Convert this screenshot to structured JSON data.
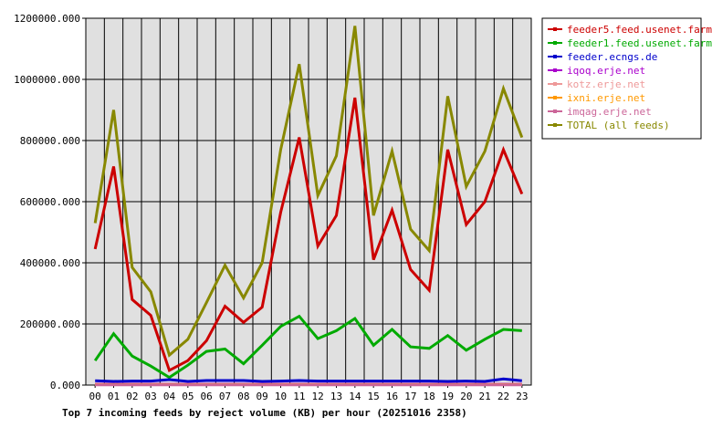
{
  "chart_data": {
    "type": "line",
    "title": "Top 7 incoming feeds by reject volume (KB) per hour (20251016 2358)",
    "x": [
      "00",
      "01",
      "02",
      "03",
      "04",
      "05",
      "06",
      "07",
      "08",
      "09",
      "10",
      "11",
      "12",
      "13",
      "14",
      "15",
      "16",
      "17",
      "18",
      "19",
      "20",
      "21",
      "22",
      "23"
    ],
    "ylim": [
      0,
      1200000
    ],
    "yticks": [
      "0.000",
      "200000.000",
      "400000.000",
      "600000.000",
      "800000.000",
      "1000000.000",
      "1200000.000"
    ],
    "ytick_values": [
      0,
      200000,
      400000,
      600000,
      800000,
      1000000,
      1200000
    ],
    "grid": true,
    "legend_position": "right",
    "plot_background": "#e0e0e0",
    "series": [
      {
        "name": "feeder5.feed.usenet.farm",
        "color": "#cc0000",
        "values": [
          445000,
          715000,
          280000,
          228000,
          48000,
          80000,
          145000,
          258000,
          205000,
          255000,
          565000,
          810000,
          455000,
          555000,
          940000,
          410000,
          572000,
          378000,
          310000,
          770000,
          525000,
          600000,
          770000,
          625000
        ]
      },
      {
        "name": "feeder1.feed.usenet.farm",
        "color": "#00aa00",
        "values": [
          80000,
          168000,
          95000,
          62000,
          25000,
          65000,
          110000,
          118000,
          70000,
          130000,
          192000,
          225000,
          152000,
          178000,
          218000,
          130000,
          182000,
          125000,
          120000,
          162000,
          114000,
          150000,
          182000,
          178000
        ]
      },
      {
        "name": "feeder.ecngs.de",
        "color": "#0000cc",
        "values": [
          14000,
          12000,
          13000,
          13000,
          18000,
          12000,
          15000,
          15000,
          15000,
          12000,
          13000,
          15000,
          13000,
          13000,
          13000,
          13000,
          13000,
          13000,
          13000,
          12000,
          13000,
          12000,
          20000,
          14000
        ]
      },
      {
        "name": "iqoq.erje.net",
        "color": "#aa00cc",
        "values": [
          3000,
          3000,
          3000,
          3000,
          3000,
          3000,
          3000,
          3000,
          3000,
          3000,
          3000,
          3000,
          3000,
          3000,
          3000,
          3000,
          3000,
          3000,
          3000,
          3000,
          3000,
          3000,
          3000,
          3000
        ]
      },
      {
        "name": "kotz.erje.net",
        "color": "#ee9999",
        "values": [
          2000,
          2000,
          2000,
          2000,
          2000,
          2000,
          2000,
          2000,
          2000,
          2000,
          2000,
          2000,
          2000,
          2000,
          2000,
          2000,
          2000,
          2000,
          2000,
          2000,
          2000,
          2000,
          2000,
          2000
        ]
      },
      {
        "name": "ixni.erje.net",
        "color": "#ff9900",
        "values": [
          1500,
          1500,
          1500,
          1500,
          1500,
          1500,
          1500,
          1500,
          1500,
          1500,
          1500,
          1500,
          1500,
          1500,
          1500,
          1500,
          1500,
          1500,
          1500,
          1500,
          1500,
          1500,
          1500,
          1500
        ]
      },
      {
        "name": "imqag.erje.net",
        "color": "#cc6699",
        "values": [
          1000,
          1000,
          1000,
          1000,
          1000,
          1000,
          1000,
          1000,
          1000,
          1000,
          1000,
          1000,
          1000,
          1000,
          1000,
          1000,
          1000,
          1000,
          1000,
          1000,
          1000,
          1000,
          1000,
          1000
        ]
      },
      {
        "name": "TOTAL (all feeds)",
        "color": "#888800",
        "values": [
          530000,
          900000,
          385000,
          305000,
          98000,
          150000,
          270000,
          392000,
          285000,
          400000,
          770000,
          1050000,
          620000,
          750000,
          1175000,
          555000,
          765000,
          510000,
          440000,
          945000,
          650000,
          765000,
          970000,
          810000
        ]
      }
    ]
  }
}
